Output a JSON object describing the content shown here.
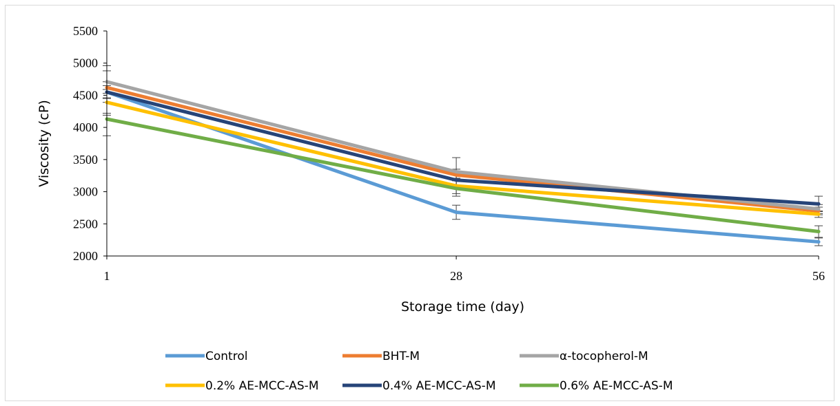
{
  "chart_data": {
    "type": "line",
    "title": "",
    "xlabel": "Storage time (day)",
    "ylabel": "Viscosity (cP)",
    "x": [
      1,
      28,
      56
    ],
    "ylim": [
      2000,
      5500
    ],
    "yticks": [
      2000,
      2500,
      3000,
      3500,
      4000,
      4500,
      5000,
      5500
    ],
    "grid": false,
    "legend_position": "bottom",
    "series": [
      {
        "name": "Control",
        "color": "#5b9bd5",
        "values": [
          4550,
          2680,
          2220
        ],
        "errors": [
          330,
          110,
          60
        ]
      },
      {
        "name": "BHT-M",
        "color": "#ed7d31",
        "values": [
          4620,
          3260,
          2700
        ],
        "errors": [
          90,
          90,
          60
        ]
      },
      {
        "name": "α-tocopherol-M",
        "color": "#a5a5a5",
        "values": [
          4710,
          3310,
          2730
        ],
        "errors": [
          250,
          220,
          70
        ]
      },
      {
        "name": "0.2% AE-MCC-AS-M",
        "color": "#ffc000",
        "values": [
          4390,
          3090,
          2650
        ],
        "errors": [
          200,
          120,
          50
        ]
      },
      {
        "name": "0.4% AE-MCC-AS-M",
        "color": "#264478",
        "values": [
          4550,
          3180,
          2810
        ],
        "errors": [
          100,
          110,
          120
        ]
      },
      {
        "name": "0.6% AE-MCC-AS-M",
        "color": "#70ad47",
        "values": [
          4130,
          3050,
          2380
        ],
        "errors": [
          260,
          120,
          90
        ]
      }
    ]
  }
}
